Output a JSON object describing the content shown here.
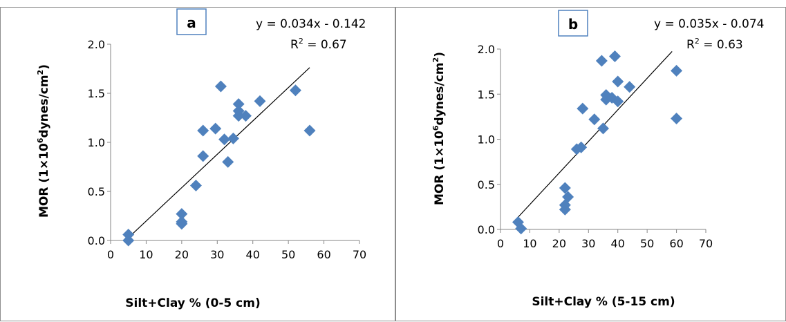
{
  "colors": {
    "marker": "#4f81bd",
    "trendline": "#000000",
    "axis": "#868686",
    "panel_border": "#8c8c8c"
  },
  "chart_data": [
    {
      "type": "scatter",
      "panel_label": "a",
      "xlabel": "Silt+Clay % (0-5 cm)",
      "ylabel_pre": "MOR (1×10",
      "ylabel_sup": "6",
      "ylabel_mid": "dynes/cm",
      "ylabel_sup2": "2",
      "ylabel_post": ")",
      "xlim": [
        0,
        70
      ],
      "ylim": [
        0,
        2.0
      ],
      "xticks": [
        "0",
        "10",
        "20",
        "30",
        "40",
        "50",
        "60",
        "70"
      ],
      "yticks": [
        "0.0",
        "0.5",
        "1.0",
        "1.5",
        "2.0"
      ],
      "grid": false,
      "legend": "none",
      "equation": "y = 0.034x - 0.142",
      "r2_label": "R",
      "r2_sup": "2",
      "r2_value": " = 0.67",
      "trendline": {
        "slope": 0.034,
        "intercept": -0.142,
        "x_range": [
          5,
          56
        ]
      },
      "series": [
        {
          "points": [
            [
              5,
              0.06
            ],
            [
              5,
              0.0
            ],
            [
              20,
              0.27
            ],
            [
              20,
              0.19
            ],
            [
              20,
              0.17
            ],
            [
              24,
              0.56
            ],
            [
              26,
              0.86
            ],
            [
              26,
              1.12
            ],
            [
              29.5,
              1.14
            ],
            [
              31,
              1.57
            ],
            [
              32,
              1.03
            ],
            [
              33,
              0.8
            ],
            [
              34.5,
              1.04
            ],
            [
              36,
              1.39
            ],
            [
              36,
              1.32
            ],
            [
              36,
              1.27
            ],
            [
              38,
              1.27
            ],
            [
              42,
              1.42
            ],
            [
              52,
              1.53
            ],
            [
              56,
              1.12
            ]
          ]
        }
      ]
    },
    {
      "type": "scatter",
      "panel_label": "b",
      "xlabel": "Silt+Clay % (5-15 cm)",
      "ylabel_pre": "MOR (1×10",
      "ylabel_sup": "6",
      "ylabel_mid": "dynes/cm",
      "ylabel_sup2": "2",
      "ylabel_post": ")",
      "xlim": [
        0,
        70
      ],
      "ylim": [
        0,
        2.0
      ],
      "xticks": [
        "0",
        "10",
        "20",
        "30",
        "40",
        "50",
        "60",
        "70"
      ],
      "yticks": [
        "0.0",
        "0.5",
        "1.0",
        "1.5",
        "2.0"
      ],
      "grid": false,
      "legend": "none",
      "equation": "y = 0.035x - 0.074",
      "r2_label": "R",
      "r2_sup": "2",
      "r2_value": " = 0.63",
      "trendline": {
        "slope": 0.035,
        "intercept": -0.074,
        "x_range": [
          6,
          58.5
        ]
      },
      "series": [
        {
          "points": [
            [
              6,
              0.08
            ],
            [
              7,
              0.01
            ],
            [
              22,
              0.46
            ],
            [
              22,
              0.27
            ],
            [
              22,
              0.22
            ],
            [
              23,
              0.36
            ],
            [
              26,
              0.89
            ],
            [
              27.5,
              0.91
            ],
            [
              28,
              1.34
            ],
            [
              32,
              1.22
            ],
            [
              35,
              1.12
            ],
            [
              34.5,
              1.87
            ],
            [
              36,
              1.49
            ],
            [
              36,
              1.44
            ],
            [
              38,
              1.46
            ],
            [
              39,
              1.92
            ],
            [
              40,
              1.64
            ],
            [
              40,
              1.42
            ],
            [
              44,
              1.58
            ],
            [
              60,
              1.76
            ],
            [
              60,
              1.23
            ]
          ]
        }
      ]
    }
  ]
}
